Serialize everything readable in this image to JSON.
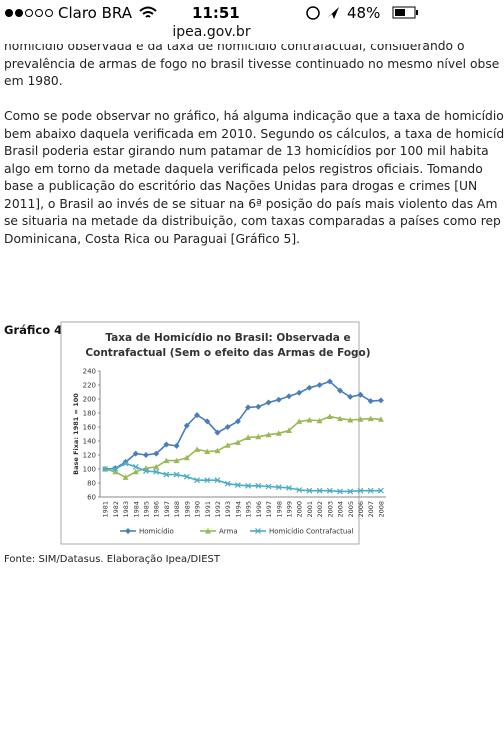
{
  "status_bar": {
    "carrier": "Claro BRA",
    "time": "11:51",
    "battery": "48%"
  },
  "address_bar": {
    "url": "ipea.gov.br"
  },
  "paragraphs": [
    [
      "homicídio observada e da taxa de homicídio contrafactual, considerando o",
      "prevalência de armas de fogo no brasil tivesse continuado no mesmo nível obse",
      "em 1980."
    ],
    [
      "Como se pode observar no gráfico, há alguma indicação que a taxa de homicídio",
      "bem abaixo daquela verificada em 2010. Segundo os cálculos, a taxa de homicíd",
      "Brasil poderia estar girando num patamar de 13 homicídios por 100 mil habita",
      "algo em torno da metade daquela verificada pelos registros oficiais. Tomando",
      "base a publicação do escritório das Nações Unidas para drogas e crimes [UN",
      "2011], o Brasil ao invés de se situar na 6ª posição do país mais violento das Am",
      "se situaria na metade da distribuição, com taxas comparadas a países como rep",
      "Dominicana, Costa Rica ou Paraguai [Gráfico 5]."
    ]
  ],
  "figure_label": "Gráfico 4",
  "chart_data": {
    "type": "line",
    "title": [
      "Taxa de Homicídio no Brasil: Observada e",
      "Contrafactual (Sem o efeito das Armas de Fogo)"
    ],
    "y_label": "Base Fixa: 1981 = 100",
    "categories": [
      "1981",
      "1982",
      "1983",
      "1984",
      "1985",
      "1986",
      "1987",
      "1988",
      "1989",
      "1990",
      "1991",
      "1992",
      "1993",
      "1994",
      "1995",
      "1996",
      "1997",
      "1998",
      "1999",
      "2000",
      "2001",
      "2002",
      "2003",
      "2004",
      "2005",
      "2006",
      "2007",
      "2008"
    ],
    "series": [
      {
        "name": "Homicídio",
        "color": "#4a7ebb",
        "marker": "diamond",
        "values": [
          100,
          101,
          110,
          122,
          120,
          122,
          135,
          133,
          162,
          177,
          168,
          152,
          160,
          168,
          188,
          189,
          195,
          199,
          204,
          209,
          216,
          220,
          225,
          212,
          203,
          206,
          197,
          198
        ]
      },
      {
        "name": "Arma",
        "color": "#98b954",
        "marker": "triangle",
        "values": [
          100,
          96,
          88,
          96,
          101,
          103,
          112,
          112,
          116,
          128,
          125,
          126,
          134,
          138,
          145,
          146,
          149,
          151,
          155,
          168,
          170,
          169,
          175,
          172,
          170,
          171,
          172,
          171
        ]
      },
      {
        "name": "Homicídio Contrafactual",
        "color": "#4bacc6",
        "marker": "cross",
        "values": [
          100,
          100,
          108,
          103,
          97,
          96,
          92,
          92,
          89,
          84,
          84,
          84,
          79,
          77,
          76,
          76,
          75,
          74,
          73,
          70,
          69,
          69,
          69,
          68,
          68,
          69,
          69,
          69
        ]
      }
    ],
    "ylim": [
      60,
      240
    ],
    "yticks": [
      60,
      80,
      100,
      120,
      140,
      160,
      180,
      200,
      220,
      240
    ],
    "grid": false
  },
  "source": "Fonte: SIM/Datasus. Elaboração Ipea/DIEST"
}
